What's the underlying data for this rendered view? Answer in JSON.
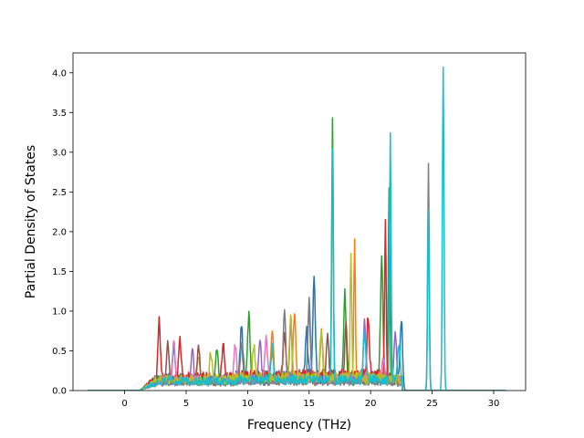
{
  "chart_data": {
    "type": "line",
    "title": "",
    "xlabel": "Frequency (THz)",
    "ylabel": "Partial Density of States",
    "xlim": [
      -4.2,
      32.6
    ],
    "ylim": [
      0,
      4.25
    ],
    "xticks": [
      0,
      5,
      10,
      15,
      20,
      25,
      30
    ],
    "yticks": [
      0.0,
      0.5,
      1.0,
      1.5,
      2.0,
      2.5,
      3.0,
      3.5,
      4.0
    ],
    "xtick_labels": [
      "0",
      "5",
      "10",
      "15",
      "20",
      "25",
      "30"
    ],
    "ytick_labels": [
      "0.0",
      "0.5",
      "1.0",
      "1.5",
      "2.0",
      "2.5",
      "3.0",
      "3.5",
      "4.0"
    ],
    "grid": false,
    "legend": "none",
    "x_range_of_data": [
      -3,
      31
    ],
    "series": [
      {
        "color": "#1f77b4",
        "peaks": [
          [
            15.4,
            1.28
          ],
          [
            22.5,
            0.78
          ],
          [
            9.5,
            0.68
          ],
          [
            14.8,
            0.6
          ],
          [
            4.0,
            0.42
          ]
        ],
        "base": 0.15
      },
      {
        "color": "#ff7f0e",
        "peaks": [
          [
            18.7,
            1.72
          ],
          [
            13.8,
            0.8
          ],
          [
            16.0,
            0.58
          ],
          [
            12.0,
            0.55
          ],
          [
            6.0,
            0.3
          ]
        ],
        "base": 0.14
      },
      {
        "color": "#2ca02c",
        "peaks": [
          [
            16.9,
            3.26
          ],
          [
            21.5,
            2.4
          ],
          [
            10.1,
            0.8
          ],
          [
            17.9,
            1.08
          ],
          [
            20.9,
            1.49
          ],
          [
            7.5,
            0.4
          ]
        ],
        "base": 0.13
      },
      {
        "color": "#d62728",
        "peaks": [
          [
            2.8,
            0.72
          ],
          [
            21.2,
            1.93
          ],
          [
            19.8,
            0.74
          ],
          [
            4.5,
            0.5
          ],
          [
            8.0,
            0.45
          ],
          [
            13.0,
            0.55
          ]
        ],
        "base": 0.16
      },
      {
        "color": "#9467bd",
        "peaks": [
          [
            15.0,
            0.9
          ],
          [
            19.5,
            0.7
          ],
          [
            22.0,
            0.65
          ],
          [
            11.0,
            0.48
          ],
          [
            5.5,
            0.42
          ]
        ],
        "base": 0.12
      },
      {
        "color": "#8c564b",
        "peaks": [
          [
            3.5,
            0.5
          ],
          [
            6.0,
            0.46
          ],
          [
            13.5,
            0.75
          ],
          [
            16.5,
            0.6
          ],
          [
            18.0,
            0.7
          ]
        ],
        "base": 0.12
      },
      {
        "color": "#e377c2",
        "peaks": [
          [
            4.0,
            0.48
          ],
          [
            9.0,
            0.45
          ],
          [
            11.5,
            0.5
          ],
          [
            16.0,
            0.55
          ],
          [
            21.0,
            0.3
          ]
        ],
        "base": 0.13
      },
      {
        "color": "#7f7f7f",
        "peaks": [
          [
            24.7,
            2.86
          ],
          [
            15.0,
            1.04
          ],
          [
            13.0,
            0.9
          ],
          [
            9.5,
            0.5
          ]
        ],
        "base": 0.1
      },
      {
        "color": "#bcbd22",
        "peaks": [
          [
            18.4,
            1.63
          ],
          [
            13.5,
            0.75
          ],
          [
            16.0,
            0.62
          ],
          [
            7.0,
            0.35
          ],
          [
            10.5,
            0.42
          ]
        ],
        "base": 0.14
      },
      {
        "color": "#17becf",
        "peaks": [
          [
            25.9,
            4.07
          ],
          [
            21.6,
            3.1
          ],
          [
            16.9,
            2.88
          ],
          [
            24.7,
            2.28
          ],
          [
            19.5,
            0.6
          ],
          [
            22.3,
            0.45
          ],
          [
            12.0,
            0.4
          ]
        ],
        "base": 0.12
      }
    ]
  }
}
